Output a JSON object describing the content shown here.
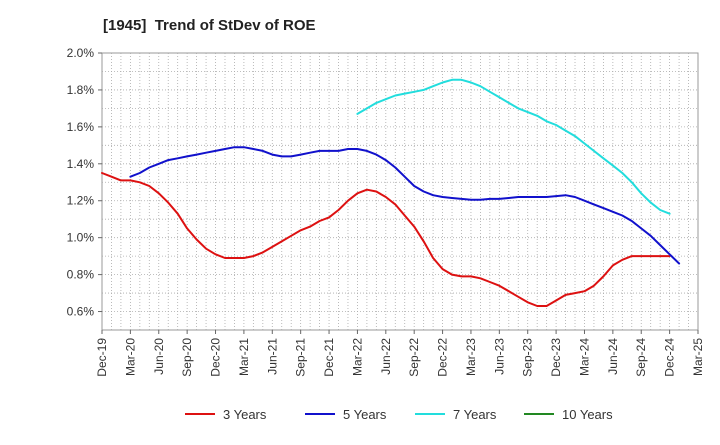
{
  "chart_data": {
    "type": "line",
    "title": "[1945]  Trend of StDev of ROE",
    "xlabel": "",
    "ylabel": "",
    "ylim": [
      0.5,
      2.0
    ],
    "x_range": [
      "2019-12",
      "2025-03"
    ],
    "grid": true,
    "legend_position": "bottom",
    "x_tick_labels": [
      "Dec-19",
      "Mar-20",
      "Jun-20",
      "Sep-20",
      "Dec-20",
      "Mar-21",
      "Jun-21",
      "Sep-21",
      "Dec-21",
      "Mar-22",
      "Jun-22",
      "Sep-22",
      "Dec-22",
      "Mar-23",
      "Jun-23",
      "Sep-23",
      "Dec-23",
      "Mar-24",
      "Jun-24",
      "Sep-24",
      "Dec-24",
      "Mar-25"
    ],
    "y_ticks": [
      0.6,
      0.8,
      1.0,
      1.2,
      1.4,
      1.6,
      1.8,
      2.0
    ],
    "y_tick_labels": [
      "0.6%",
      "0.8%",
      "1.0%",
      "1.2%",
      "1.4%",
      "1.6%",
      "1.8%",
      "2.0%"
    ],
    "series": [
      {
        "name": "3 Years",
        "color": "#dd1111",
        "points": [
          [
            "2019-12",
            1.35
          ],
          [
            "2020-01",
            1.33
          ],
          [
            "2020-02",
            1.31
          ],
          [
            "2020-03",
            1.31
          ],
          [
            "2020-04",
            1.3
          ],
          [
            "2020-05",
            1.28
          ],
          [
            "2020-06",
            1.24
          ],
          [
            "2020-07",
            1.19
          ],
          [
            "2020-08",
            1.13
          ],
          [
            "2020-09",
            1.05
          ],
          [
            "2020-10",
            0.99
          ],
          [
            "2020-11",
            0.94
          ],
          [
            "2020-12",
            0.91
          ],
          [
            "2021-01",
            0.89
          ],
          [
            "2021-02",
            0.89
          ],
          [
            "2021-03",
            0.89
          ],
          [
            "2021-04",
            0.9
          ],
          [
            "2021-05",
            0.92
          ],
          [
            "2021-06",
            0.95
          ],
          [
            "2021-07",
            0.98
          ],
          [
            "2021-08",
            1.01
          ],
          [
            "2021-09",
            1.04
          ],
          [
            "2021-10",
            1.06
          ],
          [
            "2021-11",
            1.09
          ],
          [
            "2021-12",
            1.11
          ],
          [
            "2022-01",
            1.15
          ],
          [
            "2022-02",
            1.2
          ],
          [
            "2022-03",
            1.24
          ],
          [
            "2022-04",
            1.26
          ],
          [
            "2022-05",
            1.25
          ],
          [
            "2022-06",
            1.22
          ],
          [
            "2022-07",
            1.18
          ],
          [
            "2022-08",
            1.12
          ],
          [
            "2022-09",
            1.06
          ],
          [
            "2022-10",
            0.98
          ],
          [
            "2022-11",
            0.89
          ],
          [
            "2022-12",
            0.83
          ],
          [
            "2023-01",
            0.8
          ],
          [
            "2023-02",
            0.79
          ],
          [
            "2023-03",
            0.79
          ],
          [
            "2023-04",
            0.78
          ],
          [
            "2023-05",
            0.76
          ],
          [
            "2023-06",
            0.74
          ],
          [
            "2023-07",
            0.71
          ],
          [
            "2023-08",
            0.68
          ],
          [
            "2023-09",
            0.65
          ],
          [
            "2023-10",
            0.63
          ],
          [
            "2023-11",
            0.63
          ],
          [
            "2023-12",
            0.66
          ],
          [
            "2024-01",
            0.69
          ],
          [
            "2024-02",
            0.7
          ],
          [
            "2024-03",
            0.71
          ],
          [
            "2024-04",
            0.74
          ],
          [
            "2024-05",
            0.79
          ],
          [
            "2024-06",
            0.85
          ],
          [
            "2024-07",
            0.88
          ],
          [
            "2024-08",
            0.9
          ],
          [
            "2024-09",
            0.9
          ],
          [
            "2024-10",
            0.9
          ],
          [
            "2024-11",
            0.9
          ],
          [
            "2024-12",
            0.9
          ]
        ]
      },
      {
        "name": "5 Years",
        "color": "#1111cc",
        "points": [
          [
            "2020-03",
            1.33
          ],
          [
            "2020-04",
            1.35
          ],
          [
            "2020-05",
            1.38
          ],
          [
            "2020-06",
            1.4
          ],
          [
            "2020-07",
            1.42
          ],
          [
            "2020-08",
            1.43
          ],
          [
            "2020-09",
            1.44
          ],
          [
            "2020-10",
            1.45
          ],
          [
            "2020-11",
            1.46
          ],
          [
            "2020-12",
            1.47
          ],
          [
            "2021-01",
            1.48
          ],
          [
            "2021-02",
            1.49
          ],
          [
            "2021-03",
            1.49
          ],
          [
            "2021-04",
            1.48
          ],
          [
            "2021-05",
            1.47
          ],
          [
            "2021-06",
            1.45
          ],
          [
            "2021-07",
            1.44
          ],
          [
            "2021-08",
            1.44
          ],
          [
            "2021-09",
            1.45
          ],
          [
            "2021-10",
            1.46
          ],
          [
            "2021-11",
            1.47
          ],
          [
            "2021-12",
            1.47
          ],
          [
            "2022-01",
            1.47
          ],
          [
            "2022-02",
            1.48
          ],
          [
            "2022-03",
            1.48
          ],
          [
            "2022-04",
            1.47
          ],
          [
            "2022-05",
            1.45
          ],
          [
            "2022-06",
            1.42
          ],
          [
            "2022-07",
            1.38
          ],
          [
            "2022-08",
            1.33
          ],
          [
            "2022-09",
            1.28
          ],
          [
            "2022-10",
            1.25
          ],
          [
            "2022-11",
            1.23
          ],
          [
            "2022-12",
            1.22
          ],
          [
            "2023-01",
            1.215
          ],
          [
            "2023-02",
            1.21
          ],
          [
            "2023-03",
            1.205
          ],
          [
            "2023-04",
            1.205
          ],
          [
            "2023-05",
            1.21
          ],
          [
            "2023-06",
            1.21
          ],
          [
            "2023-07",
            1.215
          ],
          [
            "2023-08",
            1.22
          ],
          [
            "2023-09",
            1.22
          ],
          [
            "2023-10",
            1.22
          ],
          [
            "2023-11",
            1.22
          ],
          [
            "2023-12",
            1.225
          ],
          [
            "2024-01",
            1.23
          ],
          [
            "2024-02",
            1.22
          ],
          [
            "2024-03",
            1.2
          ],
          [
            "2024-04",
            1.18
          ],
          [
            "2024-05",
            1.16
          ],
          [
            "2024-06",
            1.14
          ],
          [
            "2024-07",
            1.12
          ],
          [
            "2024-08",
            1.09
          ],
          [
            "2024-09",
            1.05
          ],
          [
            "2024-10",
            1.01
          ],
          [
            "2024-11",
            0.96
          ],
          [
            "2024-12",
            0.91
          ],
          [
            "2025-01",
            0.86
          ]
        ]
      },
      {
        "name": "7 Years",
        "color": "#22dddd",
        "points": [
          [
            "2022-03",
            1.67
          ],
          [
            "2022-04",
            1.7
          ],
          [
            "2022-05",
            1.73
          ],
          [
            "2022-06",
            1.75
          ],
          [
            "2022-07",
            1.77
          ],
          [
            "2022-08",
            1.78
          ],
          [
            "2022-09",
            1.79
          ],
          [
            "2022-10",
            1.8
          ],
          [
            "2022-11",
            1.82
          ],
          [
            "2022-12",
            1.84
          ],
          [
            "2023-01",
            1.855
          ],
          [
            "2023-02",
            1.855
          ],
          [
            "2023-03",
            1.84
          ],
          [
            "2023-04",
            1.82
          ],
          [
            "2023-05",
            1.79
          ],
          [
            "2023-06",
            1.76
          ],
          [
            "2023-07",
            1.73
          ],
          [
            "2023-08",
            1.7
          ],
          [
            "2023-09",
            1.68
          ],
          [
            "2023-10",
            1.66
          ],
          [
            "2023-11",
            1.63
          ],
          [
            "2023-12",
            1.61
          ],
          [
            "2024-01",
            1.58
          ],
          [
            "2024-02",
            1.55
          ],
          [
            "2024-03",
            1.51
          ],
          [
            "2024-04",
            1.47
          ],
          [
            "2024-05",
            1.43
          ],
          [
            "2024-06",
            1.39
          ],
          [
            "2024-07",
            1.35
          ],
          [
            "2024-08",
            1.3
          ],
          [
            "2024-09",
            1.24
          ],
          [
            "2024-10",
            1.19
          ],
          [
            "2024-11",
            1.15
          ],
          [
            "2024-12",
            1.13
          ]
        ]
      },
      {
        "name": "10 Years",
        "color": "#228822",
        "points": []
      }
    ]
  }
}
